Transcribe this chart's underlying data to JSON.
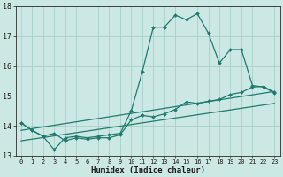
{
  "xlabel": "Humidex (Indice chaleur)",
  "ylabel": "",
  "xlim": [
    -0.5,
    23.5
  ],
  "ylim": [
    13,
    18
  ],
  "yticks": [
    13,
    14,
    15,
    16,
    17,
    18
  ],
  "xticks": [
    0,
    1,
    2,
    3,
    4,
    5,
    6,
    7,
    8,
    9,
    10,
    11,
    12,
    13,
    14,
    15,
    16,
    17,
    18,
    19,
    20,
    21,
    22,
    23
  ],
  "xtick_labels": [
    "0",
    "1",
    "2",
    "3",
    "4",
    "5",
    "6",
    "7",
    "8",
    "9",
    "10",
    "11",
    "12",
    "13",
    "14",
    "15",
    "16",
    "17",
    "18",
    "19",
    "20",
    "21",
    "22",
    "23"
  ],
  "bg_color": "#cce8e4",
  "grid_color": "#a8cfc8",
  "line_color": "#1e7b6e",
  "series": [
    {
      "x": [
        0,
        1,
        2,
        3,
        4,
        5,
        6,
        7,
        8,
        9,
        10,
        11,
        12,
        13,
        14,
        15,
        16,
        17,
        18,
        19,
        20,
        21,
        22,
        23
      ],
      "y": [
        14.1,
        13.85,
        13.65,
        13.2,
        13.6,
        13.65,
        13.6,
        13.65,
        13.7,
        13.75,
        14.5,
        15.8,
        17.3,
        17.3,
        17.7,
        17.55,
        17.75,
        17.1,
        16.1,
        16.55,
        16.55,
        15.35,
        15.3,
        15.1
      ],
      "marker": "D",
      "markersize": 2.0,
      "linewidth": 0.9
    },
    {
      "x": [
        0,
        1,
        2,
        3,
        4,
        5,
        6,
        7,
        8,
        9,
        10,
        11,
        12,
        13,
        14,
        15,
        16,
        17,
        18,
        19,
        20,
        21,
        22,
        23
      ],
      "y": [
        14.1,
        13.85,
        13.65,
        13.75,
        13.5,
        13.6,
        13.55,
        13.6,
        13.6,
        13.7,
        14.2,
        14.35,
        14.3,
        14.4,
        14.55,
        14.8,
        14.75,
        14.82,
        14.88,
        15.05,
        15.12,
        15.3,
        15.32,
        15.12
      ],
      "marker": "D",
      "markersize": 2.0,
      "linewidth": 0.9
    },
    {
      "x": [
        0,
        23
      ],
      "y": [
        13.5,
        14.75
      ],
      "marker": null,
      "linewidth": 0.9
    },
    {
      "x": [
        0,
        23
      ],
      "y": [
        13.85,
        15.15
      ],
      "marker": null,
      "linewidth": 0.9
    }
  ]
}
